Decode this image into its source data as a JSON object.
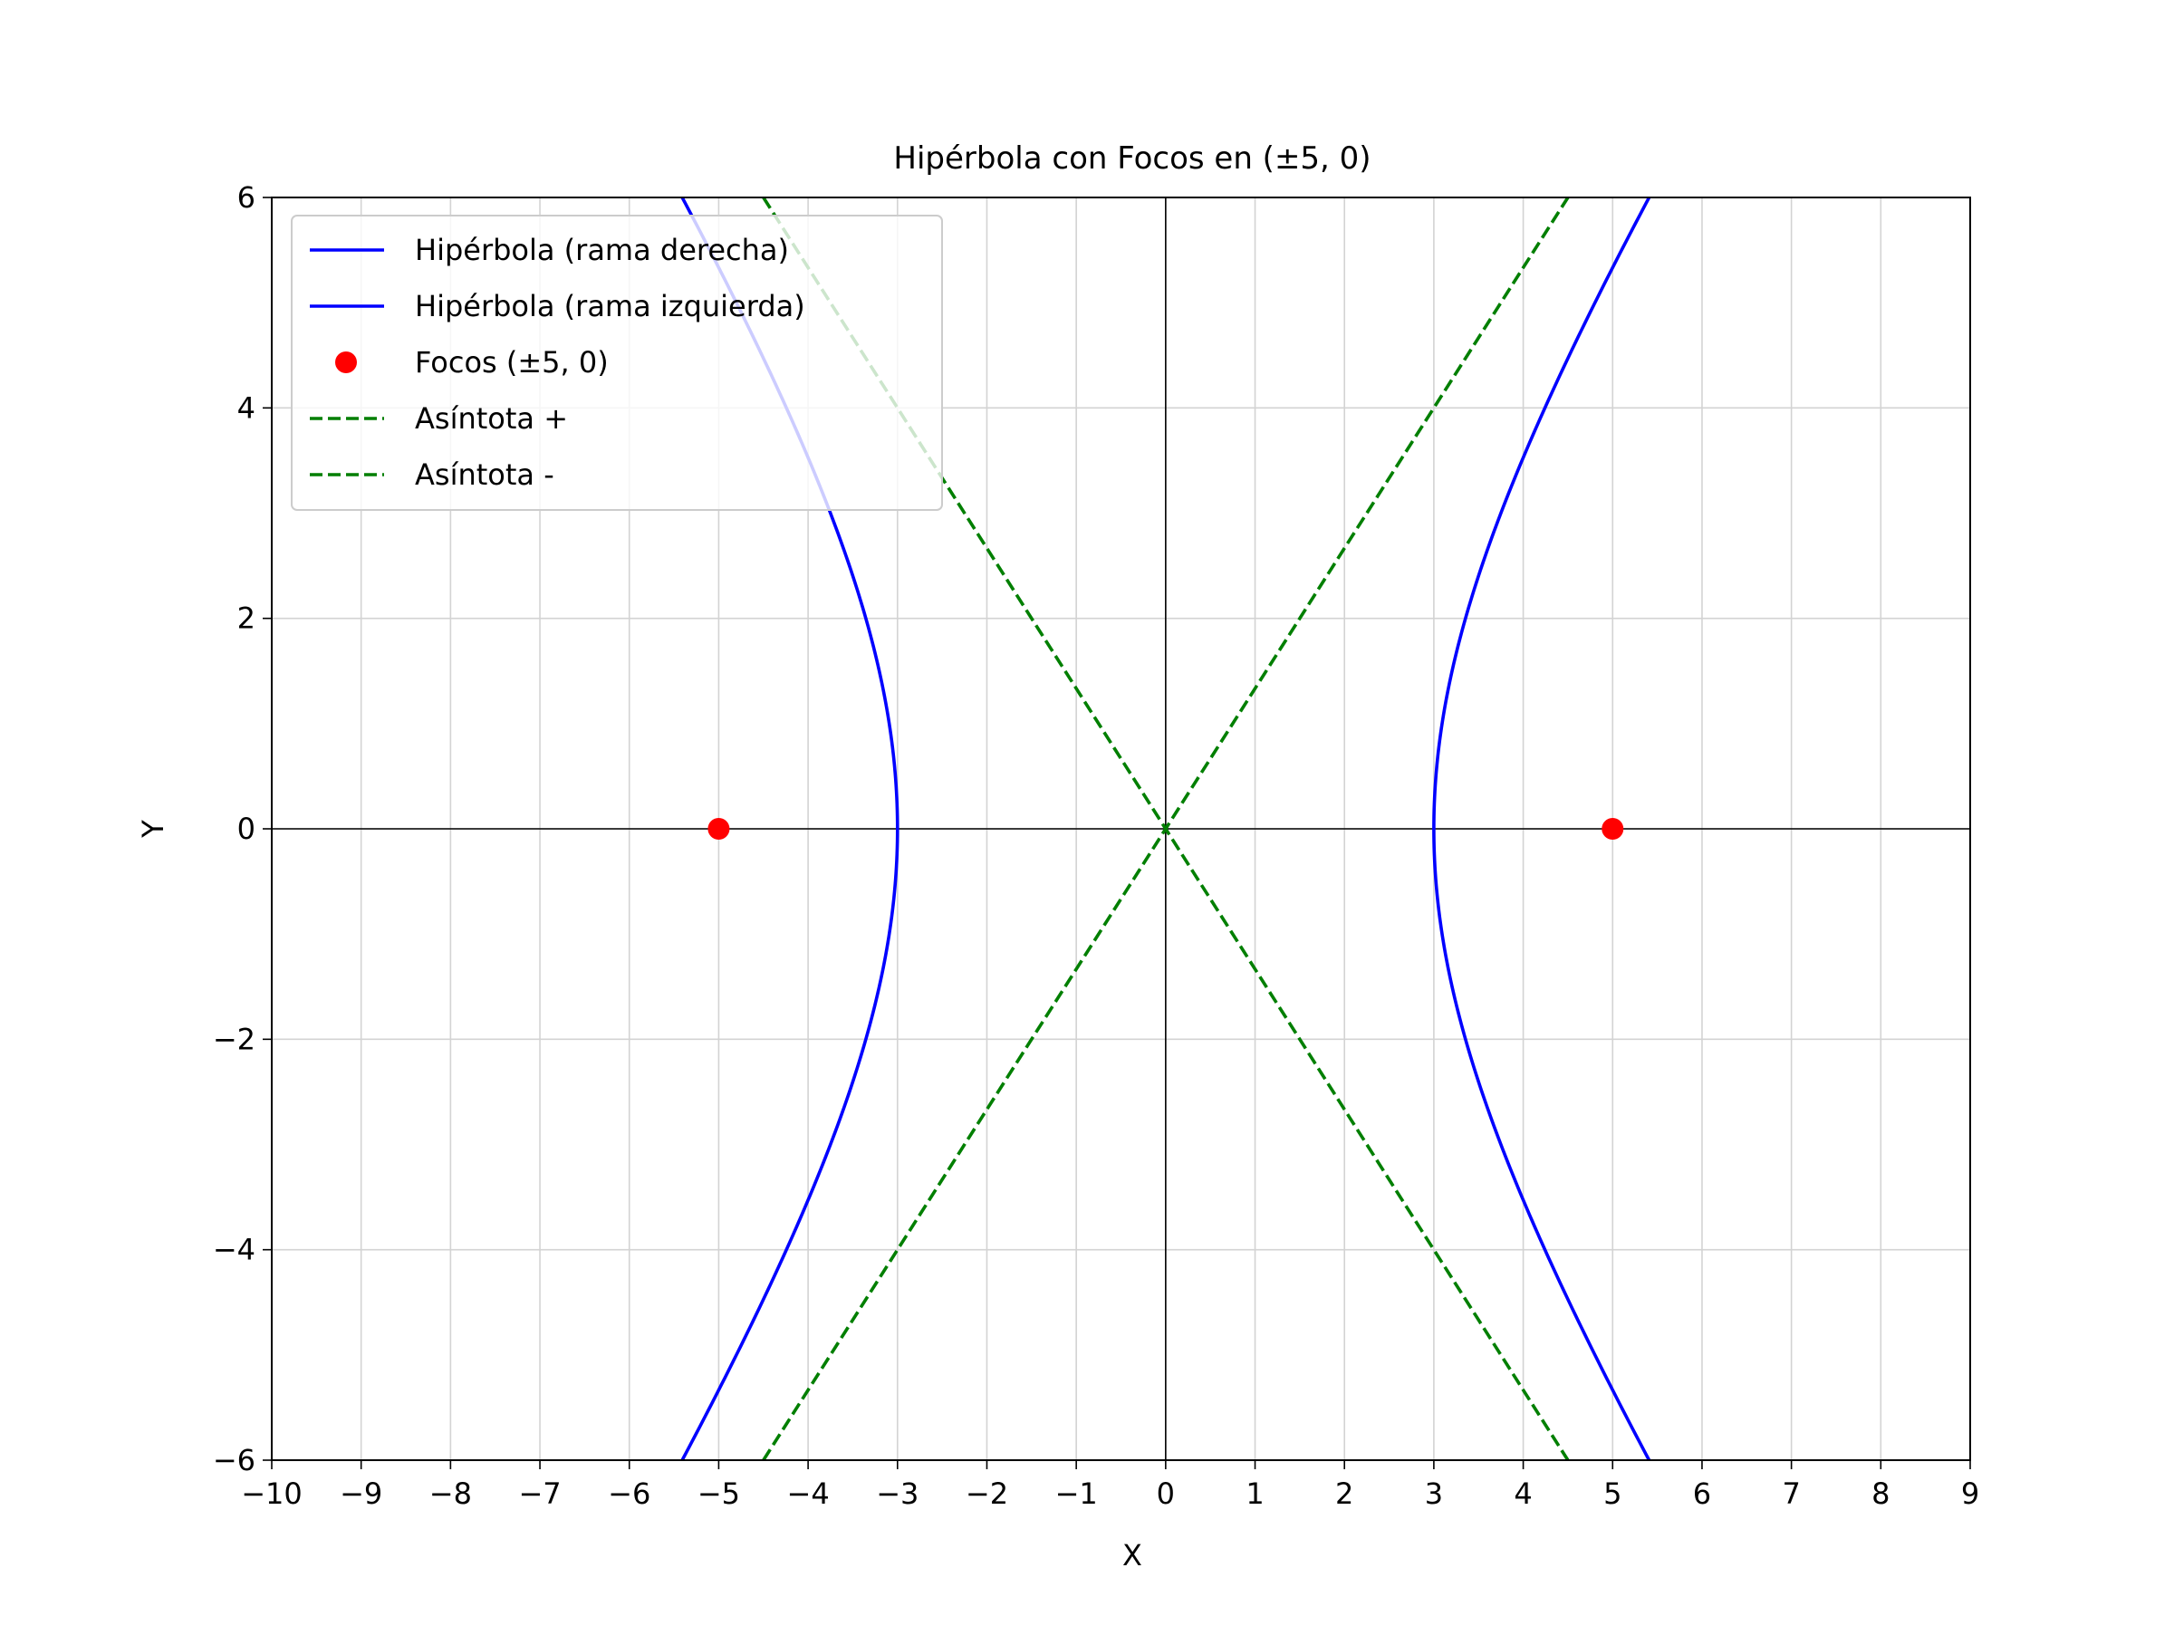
{
  "chart_data": {
    "type": "line",
    "title": "Hipérbola con Focos en (±5, 0)",
    "xlabel": "X",
    "ylabel": "Y",
    "xlim": [
      -10,
      9
    ],
    "ylim": [
      -6,
      6
    ],
    "xticks": [
      -10,
      -9,
      -8,
      -7,
      -6,
      -5,
      -4,
      -3,
      -2,
      -1,
      0,
      1,
      2,
      3,
      4,
      5,
      6,
      7,
      8,
      9
    ],
    "yticks": [
      -6,
      -4,
      -2,
      0,
      2,
      4,
      6
    ],
    "grid": true,
    "legend_position": "upper-left",
    "hyperbola": {
      "a": 3,
      "b": 4,
      "c": 5
    },
    "series": [
      {
        "name": "Hipérbola (rama derecha)",
        "kind": "curve",
        "branch": "right",
        "color": "#0000ff",
        "style": "solid",
        "x": [
          5.41,
          5.0,
          4.24,
          3.61,
          3.19,
          3.0,
          3.19,
          3.61,
          4.24,
          5.0,
          5.41
        ],
        "y": [
          -6.0,
          -5.33,
          -4.0,
          -2.67,
          -1.33,
          0.0,
          1.33,
          2.67,
          4.0,
          5.33,
          6.0
        ]
      },
      {
        "name": "Hipérbola (rama izquierda)",
        "kind": "curve",
        "branch": "left",
        "color": "#0000ff",
        "style": "solid",
        "x": [
          -5.41,
          -5.0,
          -4.24,
          -3.61,
          -3.19,
          -3.0,
          -3.19,
          -3.61,
          -4.24,
          -5.0,
          -5.41
        ],
        "y": [
          -6.0,
          -5.33,
          -4.0,
          -2.67,
          -1.33,
          0.0,
          1.33,
          2.67,
          4.0,
          5.33,
          6.0
        ]
      },
      {
        "name": "Focos (±5, 0)",
        "kind": "points",
        "color": "#ff0000",
        "x": [
          -5,
          5
        ],
        "y": [
          0,
          0
        ]
      },
      {
        "name": "Asíntota +",
        "kind": "line",
        "color": "#007f00",
        "style": "dashed",
        "x": [
          -4.5,
          4.5
        ],
        "y": [
          -6,
          6
        ]
      },
      {
        "name": "Asíntota -",
        "kind": "line",
        "color": "#007f00",
        "style": "dashed",
        "x": [
          -4.5,
          4.5
        ],
        "y": [
          6,
          -6
        ]
      }
    ]
  }
}
